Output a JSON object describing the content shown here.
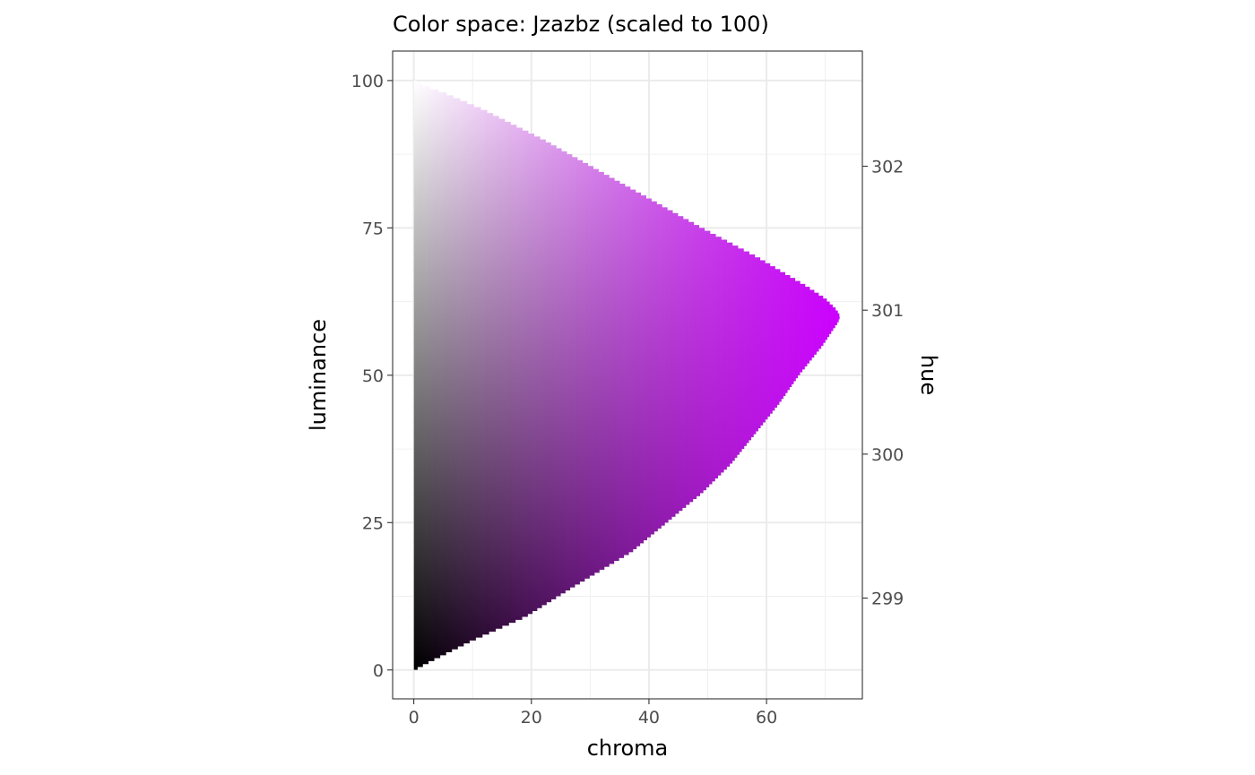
{
  "chart_data": {
    "type": "heatmap",
    "title": "Color space: Jzazbz (scaled to 100)",
    "xlabel": "chroma",
    "ylabel": "luminance",
    "y2label": "hue",
    "xlim": [
      -3.6,
      76.3
    ],
    "ylim": [
      -4.9,
      105
    ],
    "y2lim": [
      298.3,
      302.8
    ],
    "xticks": [
      0,
      20,
      40,
      60
    ],
    "xticks_minor": [
      10,
      30,
      50,
      70
    ],
    "yticks": [
      0,
      25,
      50,
      75,
      100
    ],
    "yticks_minor": [
      12.5,
      37.5,
      62.5,
      87.5
    ],
    "y2ticks": [
      299,
      300,
      301,
      302
    ],
    "grid": true,
    "theme": "bw",
    "hue_color": "#cc00ff",
    "gamut_boundary": {
      "luminance": [
        0,
        1,
        2,
        5,
        9,
        14,
        20,
        25,
        30,
        35,
        40,
        45,
        50,
        55,
        58,
        59,
        60,
        61,
        63,
        65,
        70,
        75,
        80,
        85,
        90,
        95,
        98,
        99,
        100
      ],
      "max_chroma": [
        0.2,
        2,
        4,
        10,
        19,
        27,
        37,
        43,
        49,
        54,
        58,
        62,
        65.5,
        69.5,
        71.5,
        72.2,
        72.5,
        72,
        70,
        67,
        58.5,
        49,
        40,
        31,
        22,
        12,
        5,
        2,
        0
      ]
    }
  }
}
